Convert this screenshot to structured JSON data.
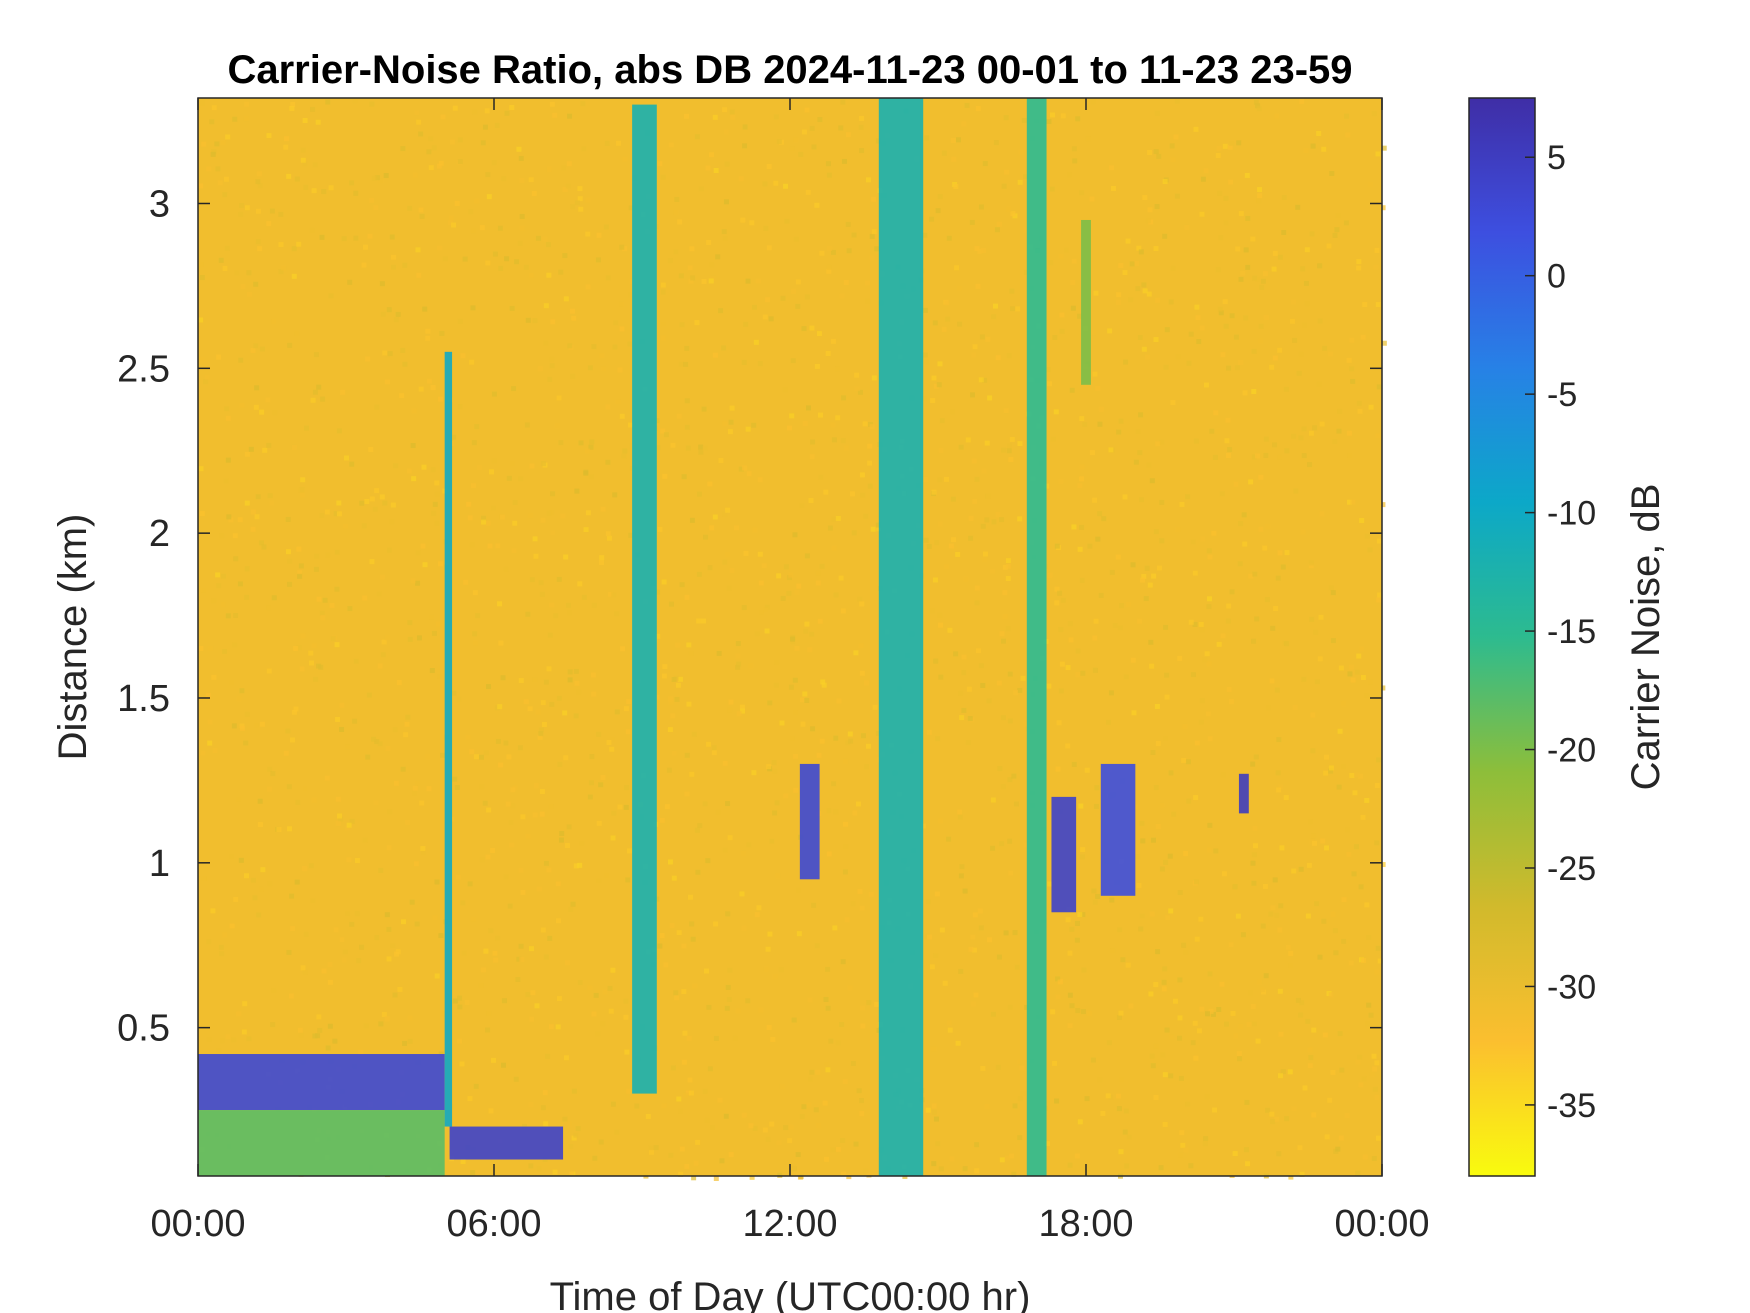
{
  "chart_data": {
    "type": "heatmap",
    "title": "Carrier-Noise Ratio, abs DB 2024-11-23 00-01 to 11-23 23-59",
    "xlabel": "Time of Day (UTC00:00 hr)",
    "ylabel": "Distance (km)",
    "colorbar_label": "Carrier Noise, dB",
    "xlim": [
      0,
      24
    ],
    "ylim": [
      0.05,
      3.32
    ],
    "clim": [
      -38,
      7.5
    ],
    "x_ticks": [
      0,
      6,
      12,
      18,
      24
    ],
    "x_tick_labels": [
      "00:00",
      "06:00",
      "12:00",
      "18:00",
      "00:00"
    ],
    "y_ticks": [
      0.5,
      1,
      1.5,
      2,
      2.5,
      3
    ],
    "y_tick_labels": [
      "0.5",
      "1",
      "1.5",
      "2",
      "2.5",
      "3"
    ],
    "colorbar_ticks": [
      5,
      0,
      -5,
      -10,
      -15,
      -20,
      -25,
      -30,
      -35
    ],
    "colorbar_tick_labels": [
      "5",
      "0",
      "-5",
      "-10",
      "-15",
      "-20",
      "-25",
      "-30",
      "-35"
    ],
    "colormap": "parula",
    "colormap_stops": [
      "#f9fb0e",
      "#fbbf2f",
      "#d1ba2c",
      "#8dbe3a",
      "#2dbb8f",
      "#0ca8c8",
      "#2781e6",
      "#3d4fe0",
      "#3f2ea6"
    ],
    "background_value": -31,
    "features": [
      {
        "desc": "boundary layer echo",
        "t": [
          0.0,
          5.0
        ],
        "h": [
          0.25,
          0.42
        ],
        "value": 3
      },
      {
        "desc": "near-surface layer",
        "t": [
          0.0,
          5.0
        ],
        "h": [
          0.05,
          0.25
        ],
        "value": -18
      },
      {
        "desc": "lowered layer",
        "t": [
          5.1,
          7.4
        ],
        "h": [
          0.1,
          0.2
        ],
        "value": 4
      },
      {
        "desc": "thin vertical streak",
        "t": [
          5.0,
          5.15
        ],
        "h": [
          0.2,
          2.55
        ],
        "value": -10
      },
      {
        "desc": "rising plume",
        "t": [
          8.8,
          9.3
        ],
        "h": [
          0.3,
          3.3
        ],
        "value": -12
      },
      {
        "desc": "wide column",
        "t": [
          13.8,
          14.7
        ],
        "h": [
          0.05,
          3.32
        ],
        "value": -12
      },
      {
        "desc": "column",
        "t": [
          16.8,
          17.2
        ],
        "h": [
          0.05,
          3.32
        ],
        "value": -15
      },
      {
        "desc": "cloud patch",
        "t": [
          12.2,
          12.6
        ],
        "h": [
          0.95,
          1.3
        ],
        "value": 3
      },
      {
        "desc": "cloud patch",
        "t": [
          17.3,
          17.8
        ],
        "h": [
          0.85,
          1.2
        ],
        "value": 4
      },
      {
        "desc": "cloud patch",
        "t": [
          18.3,
          19.0
        ],
        "h": [
          0.9,
          1.3
        ],
        "value": 2
      },
      {
        "desc": "cloud patch",
        "t": [
          21.1,
          21.3
        ],
        "h": [
          1.15,
          1.27
        ],
        "value": 5
      },
      {
        "desc": "faint streak",
        "t": [
          17.9,
          18.1
        ],
        "h": [
          2.45,
          2.95
        ],
        "value": -20
      }
    ]
  }
}
